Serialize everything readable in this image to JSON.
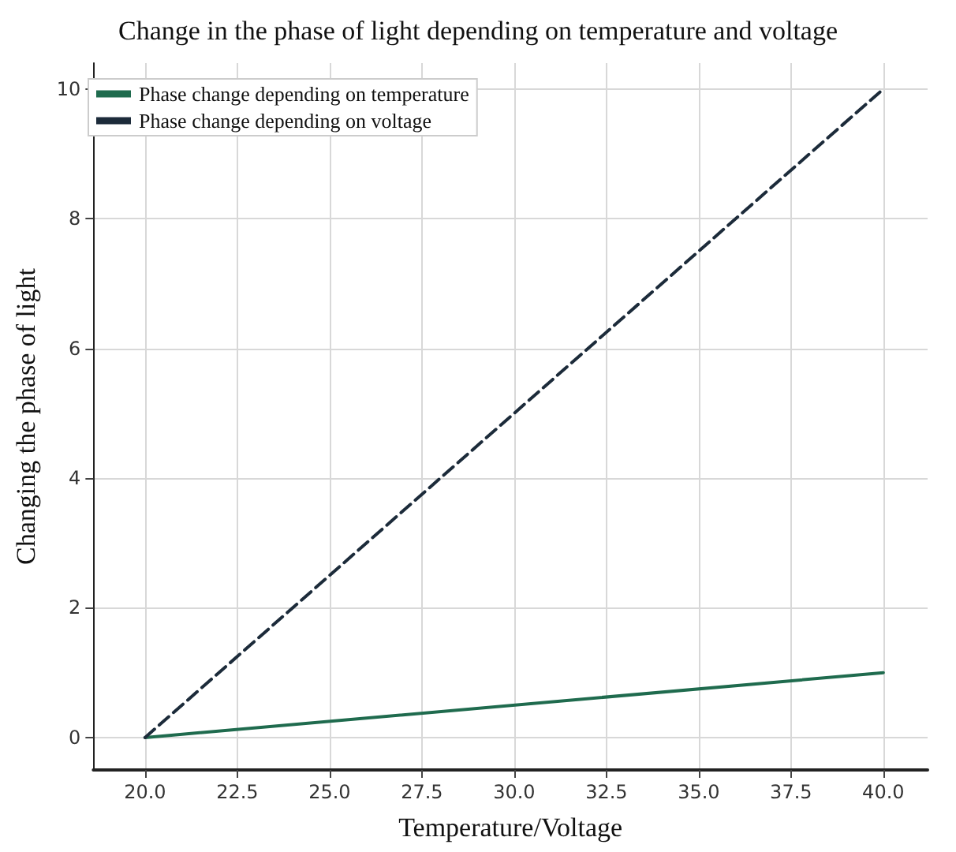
{
  "chart_data": {
    "type": "line",
    "title": "Change in the phase of light depending on temperature and voltage",
    "xlabel": "Temperature/Voltage",
    "ylabel": "Changing the phase of light",
    "x": [
      20,
      40
    ],
    "series": [
      {
        "name": "Phase change depending on temperature",
        "color": "#1f6b4e",
        "values": [
          0,
          1
        ],
        "line_style": "solid"
      },
      {
        "name": "Phase change depending on voltage",
        "color": "#1c2b3a",
        "values": [
          0,
          10
        ],
        "line_style": "dashed"
      }
    ],
    "xlim": [
      18.6,
      41.2
    ],
    "xticks": [
      {
        "value": 20,
        "label": "20.0"
      },
      {
        "value": 22.5,
        "label": "22.5"
      },
      {
        "value": 25,
        "label": "25.0"
      },
      {
        "value": 27.5,
        "label": "27.5"
      },
      {
        "value": 30,
        "label": "30.0"
      },
      {
        "value": 32.5,
        "label": "32.5"
      },
      {
        "value": 35,
        "label": "35.0"
      },
      {
        "value": 37.5,
        "label": "37.5"
      },
      {
        "value": 40,
        "label": "40.0"
      }
    ],
    "ylim": [
      -0.5,
      10.4
    ],
    "yticks": [
      0,
      2,
      4,
      6,
      8,
      10
    ],
    "grid": true,
    "legend": "top left",
    "marker": "none"
  }
}
